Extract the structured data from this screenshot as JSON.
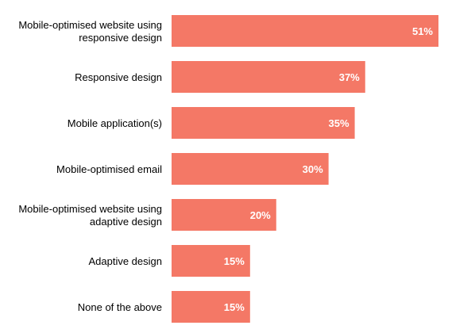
{
  "chart_data": {
    "type": "bar",
    "orientation": "horizontal",
    "categories": [
      "Mobile-optimised website using responsive design",
      "Responsive design",
      "Mobile application(s)",
      "Mobile-optimised email",
      "Mobile-optimised website using adaptive design",
      "Adaptive design",
      "None of the above"
    ],
    "category_lines": [
      [
        "Mobile-optimised website using",
        "responsive design"
      ],
      [
        "Responsive design"
      ],
      [
        "Mobile application(s)"
      ],
      [
        "Mobile-optimised email"
      ],
      [
        "Mobile-optimised website using",
        "adaptive design"
      ],
      [
        "Adaptive design"
      ],
      [
        "None of the above"
      ]
    ],
    "values": [
      51,
      37,
      35,
      30,
      20,
      15,
      15
    ],
    "value_labels": [
      "51%",
      "37%",
      "35%",
      "30%",
      "20%",
      "15%",
      "15%"
    ],
    "unit": "%",
    "xlim": [
      0,
      51
    ],
    "grid": false,
    "bar_color": "#f47866",
    "label_color": "#ffffff",
    "text_color": "#000000"
  }
}
